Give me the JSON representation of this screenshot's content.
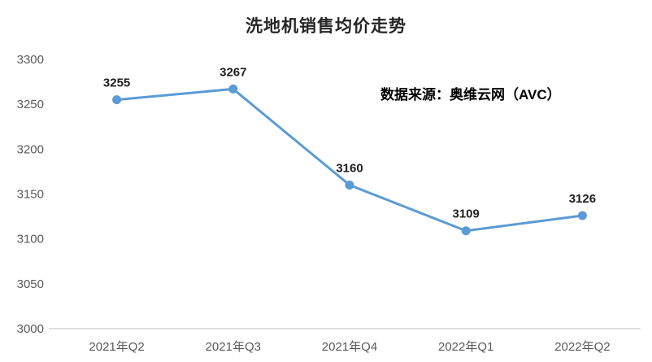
{
  "title": "洗地机销售均价走势",
  "annotation": "数据来源：奥维云网（AVC）",
  "chart_data": {
    "type": "line",
    "title": "洗地机销售均价走势",
    "categories": [
      "2021年Q2",
      "2021年Q3",
      "2021年Q4",
      "2022年Q1",
      "2022年Q2"
    ],
    "values": [
      3255,
      3267,
      3160,
      3109,
      3126
    ],
    "xlabel": "",
    "ylabel": "",
    "ylim": [
      3000,
      3300
    ],
    "ytick_step": 50,
    "grid": false,
    "legend_position": "none",
    "annotation": "数据来源：奥维云网（AVC）",
    "colors": {
      "line": "#5B9BD5",
      "marker": "#5B9BD5",
      "axis_line": "#d6d6d6",
      "tick_label": "#595959",
      "data_label": "#1f1f1f"
    }
  }
}
